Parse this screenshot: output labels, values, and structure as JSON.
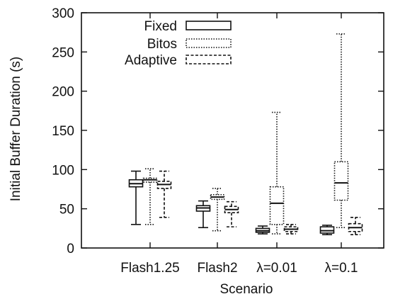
{
  "chart_data": {
    "type": "boxplot",
    "xlabel": "Scenario",
    "ylabel": "Initial Buffer Duration (s)",
    "ylim": [
      0,
      300
    ],
    "yticks": [
      0,
      50,
      100,
      150,
      200,
      250,
      300
    ],
    "grid": false,
    "legend_position": "top-center",
    "categories": [
      "Flash1.25",
      "Flash2",
      "λ=0.01",
      "λ=0.1"
    ],
    "series": [
      {
        "name": "Fixed",
        "line_style": "solid",
        "boxes": [
          {
            "min": 30,
            "q1": 78,
            "median": 82,
            "q3": 87,
            "max": 98
          },
          {
            "min": 26,
            "q1": 47,
            "median": 51,
            "q3": 54,
            "max": 60
          },
          {
            "min": 18,
            "q1": 20,
            "median": 22,
            "q3": 25,
            "max": 28
          },
          {
            "min": 17,
            "q1": 19,
            "median": 22,
            "q3": 27,
            "max": 29
          }
        ]
      },
      {
        "name": "Bitos",
        "line_style": "dotted",
        "boxes": [
          {
            "min": 30,
            "q1": 84,
            "median": 87,
            "q3": 89,
            "max": 101
          },
          {
            "min": 22,
            "q1": 62,
            "median": 65,
            "q3": 68,
            "max": 76
          },
          {
            "min": 18,
            "q1": 30,
            "median": 57,
            "q3": 78,
            "max": 173
          },
          {
            "min": 26,
            "q1": 61,
            "median": 83,
            "q3": 110,
            "max": 273
          }
        ]
      },
      {
        "name": "Adaptive",
        "line_style": "dashed",
        "boxes": [
          {
            "min": 39,
            "q1": 76,
            "median": 81,
            "q3": 85,
            "max": 98
          },
          {
            "min": 27,
            "q1": 45,
            "median": 49,
            "q3": 53,
            "max": 59
          },
          {
            "min": 18,
            "q1": 21,
            "median": 24,
            "q3": 27,
            "max": 30
          },
          {
            "min": 17,
            "q1": 21,
            "median": 26,
            "q3": 31,
            "max": 39
          }
        ]
      }
    ]
  }
}
